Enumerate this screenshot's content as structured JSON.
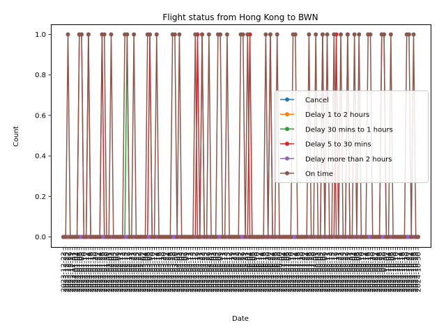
{
  "chart_data": {
    "type": "line",
    "title": "Flight status from Hong Kong to BWN",
    "xlabel": "Date",
    "ylabel": "Count",
    "ylim": [
      -0.05,
      1.05
    ],
    "yticks": [
      "0.0",
      "0.2",
      "0.4",
      "0.6",
      "0.8",
      "1.0"
    ],
    "ytick_values": [
      0,
      0.2,
      0.4,
      0.6,
      0.8,
      1.0
    ],
    "legend_position": "center-right",
    "marker": "circle",
    "x": [
      "2023-12-23",
      "2023-12-25",
      "2023-12-27",
      "2023-12-29",
      "2023-12-31",
      "2024-01-02",
      "2024-01-04",
      "2024-01-06",
      "2024-01-08",
      "2024-01-10",
      "2024-01-12",
      "2024-01-14",
      "2024-01-16",
      "2024-01-18",
      "2024-01-20",
      "2024-01-22",
      "2024-01-24",
      "2024-01-26",
      "2024-01-28",
      "2024-01-30",
      "2024-02-01",
      "2024-02-03",
      "2024-02-05",
      "2024-02-07",
      "2024-02-09",
      "2024-02-11",
      "2024-02-13",
      "2024-02-15",
      "2024-02-17",
      "2024-02-19",
      "2024-02-21",
      "2024-02-23",
      "2024-02-25",
      "2024-02-27",
      "2024-02-29",
      "2024-03-02",
      "2024-03-04",
      "2024-03-06",
      "2024-03-08",
      "2024-03-10",
      "2024-03-12",
      "2024-03-14",
      "2024-03-16",
      "2024-03-18",
      "2024-03-20",
      "2024-03-22",
      "2024-03-24",
      "2024-03-26",
      "2024-03-28",
      "2024-03-30",
      "2024-04-01",
      "2024-04-03",
      "2024-04-05",
      "2024-04-07",
      "2024-04-09",
      "2024-04-11",
      "2024-04-13",
      "2024-04-15",
      "2024-04-17",
      "2024-04-19",
      "2024-04-21",
      "2024-04-23",
      "2024-04-25",
      "2024-04-27",
      "2024-04-29",
      "2024-05-01",
      "2024-05-03",
      "2024-05-05",
      "2024-05-07",
      "2024-05-09",
      "2024-05-11",
      "2024-05-13",
      "2024-05-15",
      "2024-05-17",
      "2024-05-19",
      "2024-05-21",
      "2024-05-23",
      "2024-05-25",
      "2024-05-27",
      "2024-05-29",
      "2024-05-31",
      "2024-06-02",
      "2024-06-04",
      "2024-06-06",
      "2024-06-08",
      "2024-06-10",
      "2024-06-12",
      "2024-06-14",
      "2024-06-16",
      "2024-06-18",
      "2024-06-20",
      "2024-06-22",
      "2024-06-24",
      "2024-06-26",
      "2024-06-28",
      "2024-06-30",
      "2024-07-02",
      "2024-07-04",
      "2024-07-06",
      "2024-07-08",
      "2024-07-10",
      "2024-07-12",
      "2024-07-14",
      "2024-07-16",
      "2024-07-18",
      "2024-07-20",
      "2024-07-22",
      "2024-07-24",
      "2024-07-26",
      "2024-07-28",
      "2024-07-30",
      "2024-08-01",
      "2024-08-03",
      "2024-08-05",
      "2024-08-07",
      "2024-08-09",
      "2024-08-11",
      "2024-08-13",
      "2024-08-15",
      "2024-08-17",
      "2024-08-19",
      "2024-08-21",
      "2024-08-23",
      "2024-08-25",
      "2024-08-27",
      "2024-08-29",
      "2024-08-31",
      "2024-09-02",
      "2024-09-04",
      "2024-09-06",
      "2024-09-08",
      "2024-09-10",
      "2024-09-12",
      "2024-09-14",
      "2024-09-16",
      "2024-09-18",
      "2024-09-20",
      "2024-09-22",
      "2024-09-24",
      "2024-09-26",
      "2024-09-28",
      "2024-09-30",
      "2024-10-02",
      "2024-10-04",
      "2024-10-06",
      "2024-10-08",
      "2024-10-10",
      "2024-10-12",
      "2024-10-14",
      "2024-10-16",
      "2024-10-18",
      "2024-10-20",
      "2024-10-22",
      "2024-10-24",
      "2024-10-26",
      "2024-10-28",
      "2024-10-30"
    ],
    "series": [
      {
        "name": "Cancel",
        "color": "#1f77b4",
        "ones": []
      },
      {
        "name": "Delay 1 to 2 hours",
        "color": "#ff7f0e",
        "ones": []
      },
      {
        "name": "Delay 30 mins to 1 hours",
        "color": "#2ca02c",
        "ones": [
          28
        ]
      },
      {
        "name": "Delay 5 to 30 mins",
        "color": "#d62728",
        "ones": [
          7,
          8,
          11,
          17,
          38,
          59,
          61,
          82,
          91,
          114,
          120,
          125,
          140,
          141
        ]
      },
      {
        "name": "Delay more than 2 hours",
        "color": "#9467bd",
        "ones": []
      },
      {
        "name": "On time",
        "color": "#8c564b",
        "ones": [
          2,
          7,
          8,
          11,
          17,
          18,
          21,
          27,
          28,
          31,
          37,
          38,
          41,
          48,
          49,
          51,
          58,
          61,
          64,
          68,
          69,
          72,
          78,
          79,
          81,
          89,
          91,
          94,
          101,
          102,
          108,
          111,
          114,
          116,
          119,
          122,
          125,
          128,
          130,
          134,
          135,
          140,
          141,
          144,
          151,
          152,
          154
        ]
      }
    ]
  }
}
